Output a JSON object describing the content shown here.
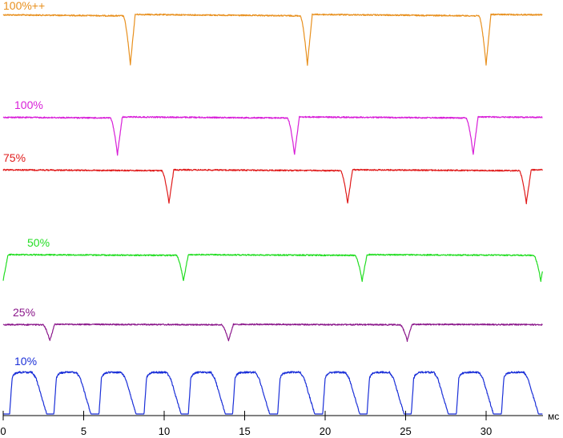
{
  "chart_data": {
    "type": "line",
    "xlabel": "",
    "ylabel": "",
    "x_unit": "мс",
    "xlim": [
      0,
      33.5
    ],
    "x_ticks": [
      0,
      5,
      10,
      15,
      20,
      25,
      30
    ],
    "x_tick_labels": [
      "0",
      "5",
      "10",
      "15",
      "20",
      "25",
      "30"
    ],
    "grid": false,
    "series": [
      {
        "name": "100%++",
        "color": "#E8901E",
        "period_ms": 11.1,
        "dips_at_ms": [
          7.9,
          18.9,
          30.0
        ],
        "level_high": 1.0,
        "level_low": 0.0
      },
      {
        "name": "100%",
        "color": "#D81ED8",
        "period_ms": 11.1,
        "dips_at_ms": [
          7.1,
          18.1,
          29.2
        ],
        "level_high": 1.0,
        "level_low": 0.0
      },
      {
        "name": "75%",
        "color": "#E01B1B",
        "period_ms": 11.1,
        "dips_at_ms": [
          10.3,
          21.4,
          32.5
        ],
        "level_high": 1.0,
        "level_low": 0.0
      },
      {
        "name": "50%",
        "color": "#22DD22",
        "period_ms": 11.1,
        "dips_at_ms": [
          0.0,
          11.2,
          22.3,
          33.4
        ],
        "level_high": 1.0,
        "level_low": 0.0
      },
      {
        "name": "25%",
        "color": "#8B178B",
        "period_ms": 11.1,
        "dips_at_ms": [
          2.9,
          14.0,
          25.1
        ],
        "level_high": 1.0,
        "level_low": 0.0
      },
      {
        "name": "10%",
        "color": "#1A2FD8",
        "period_ms": 2.78,
        "pulse_rise_at_ms": [
          0.4,
          3.15,
          5.95,
          8.75,
          11.5,
          14.25,
          17.05,
          19.85,
          22.6,
          25.35,
          28.15,
          30.95
        ],
        "level_high": 1.0,
        "level_low": 0.0
      }
    ]
  }
}
